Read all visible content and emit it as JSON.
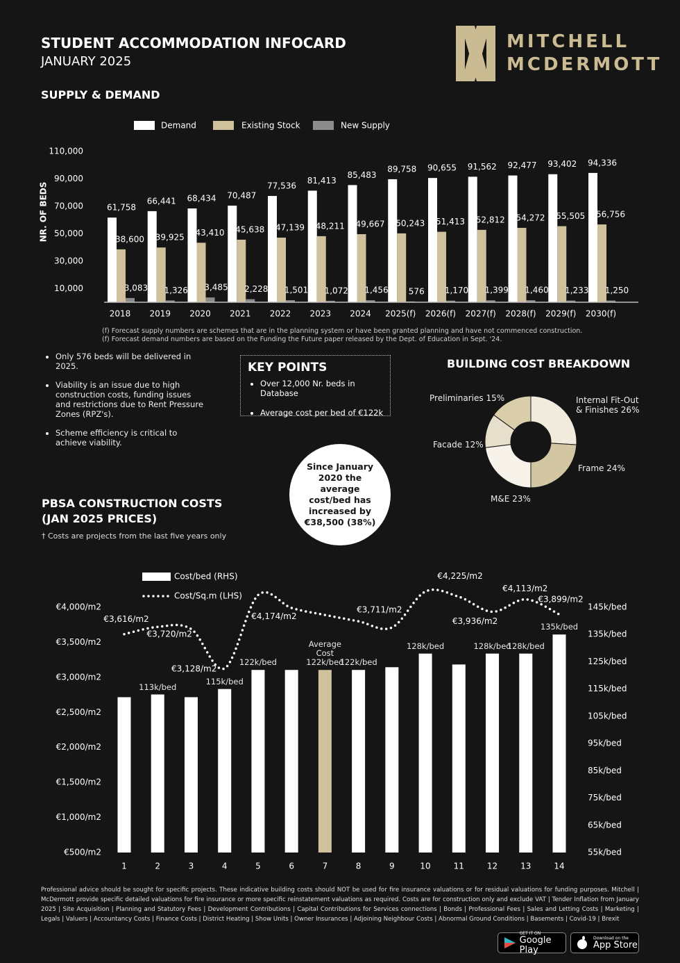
{
  "header": {
    "title": "STUDENT ACCOMMODATION INFOCARD",
    "subtitle": "JANUARY 2025",
    "logo": [
      "MITCHELL",
      "MCDERMOTT"
    ]
  },
  "chart_data": [
    {
      "type": "bar",
      "title": "SUPPLY & DEMAND",
      "ylabel": "NR. OF BEDS",
      "categories": [
        "2018",
        "2019",
        "2020",
        "2021",
        "2022",
        "2023",
        "2024",
        "2025(f)",
        "2026(f)",
        "2027(f)",
        "2028(f)",
        "2029(f)",
        "2030(f)"
      ],
      "series": [
        {
          "name": "Demand",
          "color": "#ffffff",
          "values": [
            61758,
            66441,
            68434,
            70487,
            77536,
            81413,
            85483,
            89758,
            90655,
            91562,
            92477,
            93402,
            94336
          ],
          "value_labels": [
            "61,758",
            "66,441",
            "68,434",
            "70,487",
            "77,536",
            "81,413",
            "85,483",
            "89,758",
            "90,655",
            "91,562",
            "92,477",
            "93,402",
            "94,336"
          ]
        },
        {
          "name": "Existing Stock",
          "color": "#cfc19c",
          "values": [
            38600,
            39925,
            43410,
            45638,
            47139,
            48211,
            49667,
            50243,
            51413,
            52812,
            54272,
            55505,
            56756
          ],
          "value_labels": [
            "38,600",
            "39,925",
            "43,410",
            "45,638",
            "47,139",
            "48,211",
            "49,667",
            "50,243",
            "51,413",
            "52,812",
            "54,272",
            "55,505",
            "56,756"
          ]
        },
        {
          "name": "New Supply",
          "color": "#8c8c8c",
          "values": [
            3083,
            1326,
            3485,
            2228,
            1501,
            1072,
            1456,
            576,
            1170,
            1399,
            1460,
            1233,
            1250
          ],
          "value_labels": [
            "3,083",
            "1,326",
            "3,485",
            "2,228",
            "1,501",
            "1,072",
            "1,456",
            "576",
            "1,170",
            "1,399",
            "1,460",
            "1,233",
            "1,250"
          ]
        }
      ],
      "ylim": [
        0,
        110000
      ],
      "yticks": [
        {
          "value": 10000,
          "label": "10,000"
        },
        {
          "value": 30000,
          "label": "30,000"
        },
        {
          "value": 50000,
          "label": "50,000"
        },
        {
          "value": 70000,
          "label": "70,000"
        },
        {
          "value": 90000,
          "label": "90,000"
        },
        {
          "value": 110000,
          "label": "110,000"
        }
      ],
      "legend": "top",
      "notes": [
        "(f) Forecast supply numbers are schemes that are in the planning system or have been granted planning and have not commenced construction.",
        "(f) Forecast demand numbers are based on the Funding the Future paper released by the Dept. of Education in Sept. '24."
      ]
    },
    {
      "type": "pie",
      "title": "BUILDING COST BREAKDOWN",
      "donut": true,
      "categories": [
        "Internal Fit-Out & Finishes",
        "Frame",
        "M&E",
        "Facade",
        "Preliminaries"
      ],
      "values": [
        26,
        24,
        23,
        12,
        15
      ],
      "value_labels": [
        "26%",
        "24%",
        "23%",
        "12%",
        "15%"
      ],
      "colors": [
        "#f1ebdd",
        "#d3c6a3",
        "#f7f3ea",
        "#e6dfcc",
        "#d9cdaa"
      ]
    },
    {
      "type": "combo",
      "title": "PBSA CONSTRUCTION COSTS (JAN 2025 PRICES)",
      "subtitle": "† Costs are projects from the last five years only",
      "categories": [
        "1",
        "2",
        "3",
        "4",
        "5",
        "6",
        "7",
        "8",
        "9",
        "10",
        "11",
        "12",
        "13",
        "14"
      ],
      "series": [
        {
          "name": "Cost/bed (RHS)",
          "type": "bar",
          "axis": "y2",
          "color": "#ffffff",
          "colors": [
            "#ffffff",
            "#ffffff",
            "#ffffff",
            "#ffffff",
            "#ffffff",
            "#ffffff",
            "#cfc19c",
            "#ffffff",
            "#ffffff",
            "#ffffff",
            "#ffffff",
            "#ffffff",
            "#ffffff",
            "#ffffff"
          ],
          "values": [
            112,
            113,
            112,
            115,
            122,
            122,
            122,
            122,
            123,
            128,
            124,
            128,
            128,
            135
          ],
          "value_labels": [
            null,
            "113k/bed",
            null,
            "115k/bed",
            "122k/bed",
            null,
            "Average Cost 122k/bed",
            "122k/bed",
            null,
            "128k/bed",
            null,
            "128k/bed",
            "128k/bed",
            "135k/bed"
          ]
        },
        {
          "name": "Cost/Sq.m (LHS)",
          "type": "line",
          "color": "#ffffff",
          "line_style": "dotted",
          "values": [
            3616,
            3720,
            3690,
            3128,
            4174,
            3990,
            3890,
            3800,
            3711,
            4225,
            4150,
            3936,
            4113,
            3899
          ],
          "value_labels": [
            "€3,616/m2",
            "€3,720/m2",
            null,
            "€3,128/m2",
            "€4,174/m2",
            null,
            null,
            null,
            "€3,711/m2",
            "€4,225/m2",
            null,
            "€3,936/m2",
            "€4,113/m2",
            "€3,899/m2"
          ]
        }
      ],
      "ylim": [
        500,
        4000
      ],
      "yticks": [
        {
          "value": 4000,
          "label": "€4,000/m2"
        },
        {
          "value": 3500,
          "label": "€3,500/m2"
        },
        {
          "value": 3000,
          "label": "€3,000/m2"
        },
        {
          "value": 2500,
          "label": "€2,500/m2"
        },
        {
          "value": 2000,
          "label": "€2,000/m2"
        },
        {
          "value": 1500,
          "label": "€1,500/m2"
        },
        {
          "value": 1000,
          "label": "€1,000/m2"
        },
        {
          "value": 500,
          "label": "€500/m2"
        }
      ],
      "y2lim": [
        55,
        145
      ],
      "y2ticks": [
        {
          "value": 145,
          "label": "145k/bed"
        },
        {
          "value": 135,
          "label": "135k/bed"
        },
        {
          "value": 125,
          "label": "125k/bed"
        },
        {
          "value": 115,
          "label": "115k/bed"
        },
        {
          "value": 105,
          "label": "105k/bed"
        },
        {
          "value": 95,
          "label": "95k/bed"
        },
        {
          "value": 85,
          "label": "85k/bed"
        },
        {
          "value": 75,
          "label": "75k/bed"
        },
        {
          "value": 65,
          "label": "65k/bed"
        },
        {
          "value": 55,
          "label": "55k/bed"
        }
      ],
      "legend": "top-left"
    }
  ],
  "highlights": [
    "Only 576 beds will be delivered in 2025.",
    "Viability is an issue due to high construction costs, funding issues and restrictions due to Rent Pressure Zones (RPZ's).",
    "Scheme efficiency is critical to achieve viability."
  ],
  "key_points": {
    "title": "KEY POINTS",
    "items": [
      "Over 12,000 Nr. beds in Database",
      "Average cost per bed of €122k"
    ]
  },
  "callout": "Since January 2020 the average cost/bed has increased by €38,500 (38%)",
  "disclaimer": "Professional advice should be sought for specific projects. These indicative building costs should NOT be used for fire insurance valuations or for residual valuations for funding purposes. Mitchell | McDermott provide specific detailed valuations for fire insurance or more specific reinstatement valuations as required. Costs are for construction only and exclude VAT | Tender Inflation from January 2025 | Site Acquisition | Planning and Statutory Fees | Development Contributions | Capital Contributions for Services connections | Bonds | Professional Fees | Sales and Letting Costs | Marketing | Legals | Valuers | Accountancy Costs | Finance Costs | District Heating | Show Units | Owner Insurances | Adjoining Neighbour Costs | Abnormal Ground Conditions | Basements | Covid-19 | Brexit",
  "store_buttons": [
    {
      "caption": "GET IT ON",
      "label": "Google Play"
    },
    {
      "caption": "Download on the",
      "label": "App Store"
    }
  ]
}
